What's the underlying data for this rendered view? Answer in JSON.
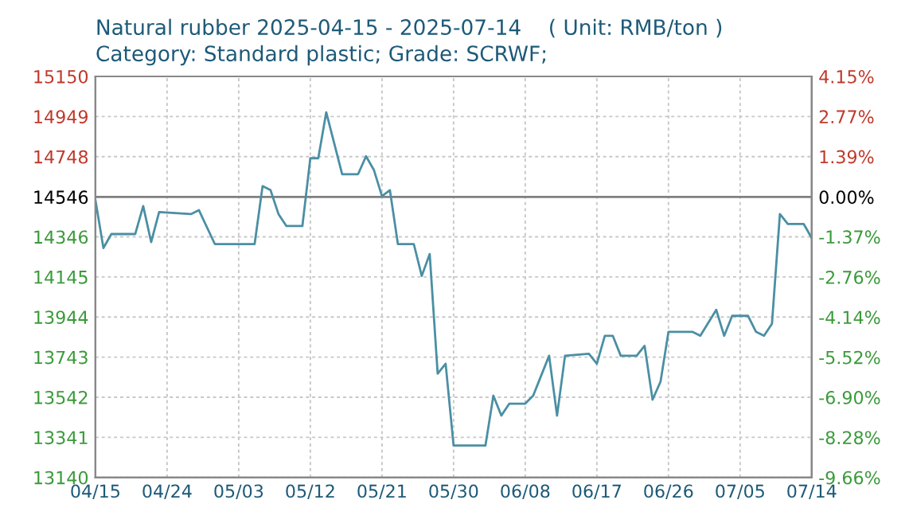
{
  "chart_data": {
    "type": "line",
    "title": "Natural rubber 2025-04-15 - 2025-07-14    ( Unit: RMB/ton )",
    "subtitle": "Category: Standard plastic; Grade: SCRWF;",
    "x": [
      "2025-04-15",
      "2025-04-16",
      "2025-04-17",
      "2025-04-20",
      "2025-04-21",
      "2025-04-22",
      "2025-04-23",
      "2025-04-27",
      "2025-04-28",
      "2025-04-30",
      "2025-05-05",
      "2025-05-06",
      "2025-05-07",
      "2025-05-08",
      "2025-05-09",
      "2025-05-11",
      "2025-05-12",
      "2025-05-13",
      "2025-05-14",
      "2025-05-16",
      "2025-05-18",
      "2025-05-19",
      "2025-05-20",
      "2025-05-21",
      "2025-05-22",
      "2025-05-23",
      "2025-05-25",
      "2025-05-26",
      "2025-05-27",
      "2025-05-28",
      "2025-05-29",
      "2025-05-30",
      "2025-06-03",
      "2025-06-04",
      "2025-06-05",
      "2025-06-06",
      "2025-06-08",
      "2025-06-09",
      "2025-06-11",
      "2025-06-12",
      "2025-06-13",
      "2025-06-16",
      "2025-06-17",
      "2025-06-18",
      "2025-06-19",
      "2025-06-20",
      "2025-06-22",
      "2025-06-23",
      "2025-06-24",
      "2025-06-25",
      "2025-06-26",
      "2025-06-29",
      "2025-06-30",
      "2025-07-02",
      "2025-07-03",
      "2025-07-04",
      "2025-07-06",
      "2025-07-07",
      "2025-07-08",
      "2025-07-09",
      "2025-07-10",
      "2025-07-11",
      "2025-07-13",
      "2025-07-14"
    ],
    "series": [
      {
        "color": "#4a8fa3",
        "values": [
          14530,
          14290,
          14360,
          14360,
          14500,
          14320,
          14470,
          14460,
          14480,
          14310,
          14310,
          14600,
          14580,
          14460,
          14400,
          14400,
          14740,
          14740,
          14970,
          14660,
          14660,
          14750,
          14680,
          14550,
          14580,
          14310,
          14310,
          14150,
          14260,
          13660,
          13710,
          13300,
          13300,
          13550,
          13450,
          13510,
          13510,
          13550,
          13750,
          13450,
          13750,
          13760,
          13710,
          13850,
          13850,
          13750,
          13750,
          13800,
          13530,
          13620,
          13870,
          13870,
          13850,
          13980,
          13850,
          13950,
          13950,
          13870,
          13850,
          13910,
          14460,
          14410,
          14410,
          14340
        ]
      }
    ],
    "xlim": [
      "2025-04-15",
      "2025-07-14"
    ],
    "xticks": [
      {
        "value": "2025-04-15",
        "label": "04/15"
      },
      {
        "value": "2025-04-24",
        "label": "04/24"
      },
      {
        "value": "2025-05-03",
        "label": "05/03"
      },
      {
        "value": "2025-05-12",
        "label": "05/12"
      },
      {
        "value": "2025-05-21",
        "label": "05/21"
      },
      {
        "value": "2025-05-30",
        "label": "05/30"
      },
      {
        "value": "2025-06-08",
        "label": "06/08"
      },
      {
        "value": "2025-06-17",
        "label": "06/17"
      },
      {
        "value": "2025-06-26",
        "label": "06/26"
      },
      {
        "value": "2025-07-05",
        "label": "07/05"
      },
      {
        "value": "2025-07-14",
        "label": "07/14"
      }
    ],
    "ylim": [
      13140,
      15150
    ],
    "yticks": [
      13140,
      13341,
      13542,
      13743,
      13944,
      14145,
      14346,
      14546,
      14748,
      14949,
      15150
    ],
    "y2lim": [
      -9.66,
      4.15
    ],
    "y2ticks": [
      {
        "value": -9.66,
        "label": "-9.66%"
      },
      {
        "value": -8.28,
        "label": "-8.28%"
      },
      {
        "value": -6.9,
        "label": "-6.90%"
      },
      {
        "value": -5.52,
        "label": "-5.52%"
      },
      {
        "value": -4.14,
        "label": "-4.14%"
      },
      {
        "value": -2.76,
        "label": "-2.76%"
      },
      {
        "value": -1.37,
        "label": "-1.37%"
      },
      {
        "value": 0,
        "label": "0.00%"
      },
      {
        "value": 1.39,
        "label": "1.39%"
      },
      {
        "value": 2.77,
        "label": "2.77%"
      },
      {
        "value": 4.15,
        "label": "4.15%"
      }
    ],
    "ref_lines": [
      {
        "axis": "y",
        "value": 14546,
        "color": "#808080"
      }
    ],
    "grid": true,
    "marker": "none",
    "line_style": "solid"
  }
}
